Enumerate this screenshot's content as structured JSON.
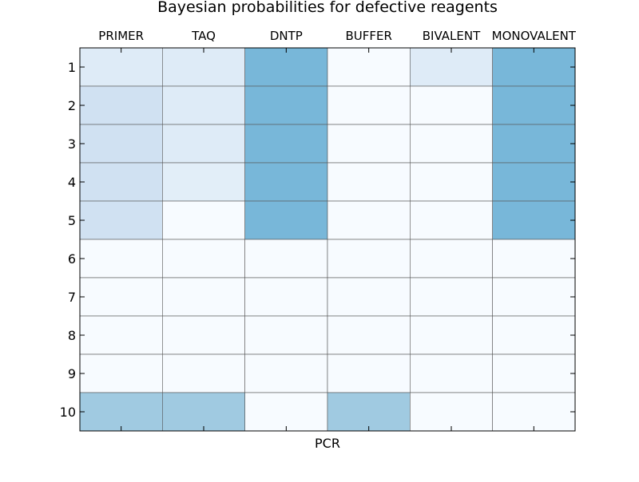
{
  "chart_data": {
    "type": "heatmap",
    "title": "Bayesian probabilities for defective reagents",
    "xlabel": "PCR",
    "ylabel": "",
    "columns": [
      "PRIMER",
      "TAQ",
      "DNTP",
      "BUFFER",
      "BIVALENT",
      "MONOVALENT"
    ],
    "rows": [
      "1",
      "2",
      "3",
      "4",
      "5",
      "6",
      "7",
      "8",
      "9",
      "10"
    ],
    "values": [
      [
        0.12,
        0.12,
        0.5,
        0.0,
        0.12,
        0.5
      ],
      [
        0.16,
        0.12,
        0.5,
        0.0,
        0.0,
        0.5
      ],
      [
        0.16,
        0.12,
        0.5,
        0.0,
        0.0,
        0.5
      ],
      [
        0.16,
        0.1,
        0.5,
        0.0,
        0.0,
        0.5
      ],
      [
        0.16,
        0.0,
        0.5,
        0.0,
        0.0,
        0.5
      ],
      [
        0.0,
        0.0,
        0.0,
        0.0,
        0.0,
        0.0
      ],
      [
        0.0,
        0.0,
        0.0,
        0.0,
        0.0,
        0.0
      ],
      [
        0.0,
        0.0,
        0.0,
        0.0,
        0.0,
        0.0
      ],
      [
        0.0,
        0.0,
        0.0,
        0.0,
        0.0,
        0.0
      ],
      [
        0.35,
        0.35,
        0.0,
        0.35,
        0.0,
        0.0
      ]
    ],
    "colormap": "Blues",
    "grid": true,
    "x_axis_position": "top"
  }
}
